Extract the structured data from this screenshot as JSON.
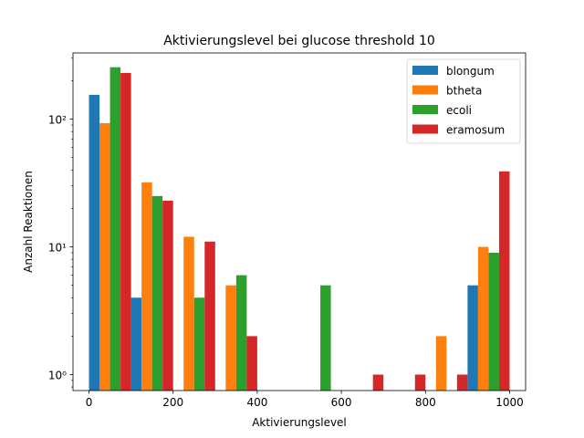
{
  "chart_data": {
    "type": "bar",
    "title": "Aktivierungslevel bei glucose threshold 10",
    "xlabel": "Aktivierungslevel",
    "ylabel": "Anzahl Reaktionen",
    "yscale": "log",
    "xlim": [
      -38,
      1038
    ],
    "ylim": [
      0.75,
      330
    ],
    "bin_centers": [
      50,
      150,
      250,
      350,
      450,
      550,
      650,
      750,
      850,
      950
    ],
    "bin_width": 100,
    "x_ticks": [
      {
        "value": 0,
        "label": "0"
      },
      {
        "value": 200,
        "label": "200"
      },
      {
        "value": 400,
        "label": "400"
      },
      {
        "value": 600,
        "label": "600"
      },
      {
        "value": 800,
        "label": "800"
      },
      {
        "value": 1000,
        "label": "1000"
      }
    ],
    "y_ticks": [
      {
        "value": 1,
        "label": "10⁰"
      },
      {
        "value": 10,
        "label": "10¹"
      },
      {
        "value": 100,
        "label": "10²"
      }
    ],
    "series": [
      {
        "name": "blongum",
        "color": "#1f77b4",
        "values": [
          155,
          4,
          0,
          0,
          0,
          0,
          0,
          0,
          0,
          5
        ]
      },
      {
        "name": "btheta",
        "color": "#ff7f0e",
        "values": [
          93,
          32,
          12,
          5,
          0,
          0,
          0,
          0,
          2,
          10
        ]
      },
      {
        "name": "ecoli",
        "color": "#2ca02c",
        "values": [
          255,
          25,
          4,
          6,
          0,
          5,
          0,
          0,
          0,
          9
        ]
      },
      {
        "name": "eramosum",
        "color": "#d62728",
        "values": [
          230,
          23,
          11,
          2,
          0,
          0,
          1,
          1,
          1,
          39
        ]
      }
    ],
    "legend_position": "top-right",
    "grid": false
  }
}
